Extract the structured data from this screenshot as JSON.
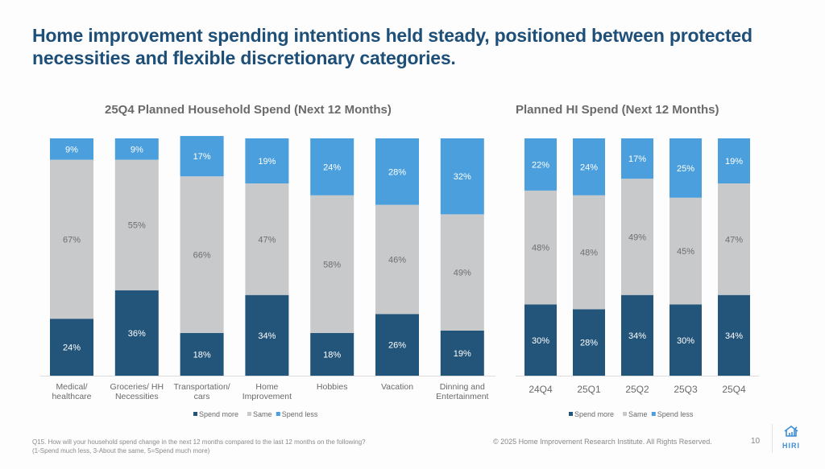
{
  "title": "Home improvement spending intentions held steady, positioned between protected necessities and flexible discretionary categories.",
  "colors": {
    "spend_more": "#23557a",
    "same": "#c8c9cb",
    "spend_less": "#4a9fdc",
    "title": "#1e4f78"
  },
  "chart_data": [
    {
      "type": "bar",
      "stacked": true,
      "title": "25Q4 Planned Household Spend (Next 12 Months)",
      "categories": [
        "Medical/ healthcare",
        "Groceries/ HH Necessities",
        "Transportation/ cars",
        "Home Improvement",
        "Hobbies",
        "Vacation",
        "Dinning and Entertainment"
      ],
      "category_lines": [
        [
          "Medical/",
          "healthcare"
        ],
        [
          "Groceries/ HH",
          "Necessities"
        ],
        [
          "Transportation/",
          "cars"
        ],
        [
          "Home",
          "Improvement"
        ],
        [
          "Hobbies"
        ],
        [
          "Vacation"
        ],
        [
          "Dinning and",
          "Entertainment"
        ]
      ],
      "series": [
        {
          "name": "Spend more",
          "values": [
            24,
            36,
            18,
            34,
            18,
            26,
            19
          ]
        },
        {
          "name": "Same",
          "values": [
            67,
            55,
            66,
            47,
            58,
            46,
            49
          ]
        },
        {
          "name": "Spend less",
          "values": [
            9,
            9,
            17,
            19,
            24,
            28,
            32
          ]
        }
      ],
      "ylim": [
        0,
        100
      ],
      "legend": [
        "Spend more",
        "Same",
        "Spend less"
      ],
      "legend_position": "bottom"
    },
    {
      "type": "bar",
      "stacked": true,
      "title": "Planned HI Spend (Next 12 Months)",
      "categories": [
        "24Q4",
        "25Q1",
        "25Q2",
        "25Q3",
        "25Q4"
      ],
      "category_lines": [
        [
          "24Q4"
        ],
        [
          "25Q1"
        ],
        [
          "25Q2"
        ],
        [
          "25Q3"
        ],
        [
          "25Q4"
        ]
      ],
      "series": [
        {
          "name": "Spend more",
          "values": [
            30,
            28,
            34,
            30,
            34
          ]
        },
        {
          "name": "Same",
          "values": [
            48,
            48,
            49,
            45,
            47
          ]
        },
        {
          "name": "Spend less",
          "values": [
            22,
            24,
            17,
            25,
            19
          ]
        }
      ],
      "ylim": [
        0,
        100
      ],
      "legend": [
        "Spend more",
        "Same",
        "Spend less"
      ],
      "legend_position": "bottom"
    }
  ],
  "footer": {
    "footnote_line1": "Q15. How will your household spend change in the next 12 months compared to the last 12 months on the following?",
    "footnote_line2": "(1-Spend much less, 3-About the same, 5=Spend much more)",
    "copyright": "© 2025 Home Improvement Research Institute. All Rights Reserved.",
    "page_number": "10",
    "logo_text": "HIRI"
  }
}
